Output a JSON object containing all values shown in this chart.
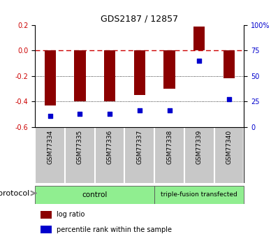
{
  "title": "GDS2187 / 12857",
  "samples": [
    "GSM77334",
    "GSM77335",
    "GSM77336",
    "GSM77337",
    "GSM77338",
    "GSM77339",
    "GSM77340"
  ],
  "log_ratio": [
    -0.43,
    -0.4,
    -0.4,
    -0.35,
    -0.3,
    0.19,
    -0.22
  ],
  "percentile_rank": [
    11,
    13,
    13,
    16,
    16,
    65,
    27
  ],
  "ylim_left": [
    -0.6,
    0.2
  ],
  "ylim_right": [
    0,
    100
  ],
  "yticks_left": [
    -0.6,
    -0.4,
    -0.2,
    0.0,
    0.2
  ],
  "yticks_right": [
    0,
    25,
    50,
    75,
    100
  ],
  "ytick_labels_right": [
    "0",
    "25",
    "50",
    "75",
    "100%"
  ],
  "bar_color": "#8B0000",
  "dot_color": "#0000CD",
  "zero_line_color": "#CC0000",
  "bg_plot": "#ffffff",
  "bg_sample": "#C8C8C8",
  "bg_control": "#90EE90",
  "bg_triple": "#90EE90",
  "control_label": "control",
  "triple_label": "triple-fusion transfected",
  "control_count": 4,
  "legend_bar_label": "log ratio",
  "legend_dot_label": "percentile rank within the sample",
  "protocol_label": "protocol",
  "title_fontsize": 9,
  "tick_fontsize": 7,
  "sample_fontsize": 6.5,
  "legend_fontsize": 7,
  "proto_fontsize": 8
}
